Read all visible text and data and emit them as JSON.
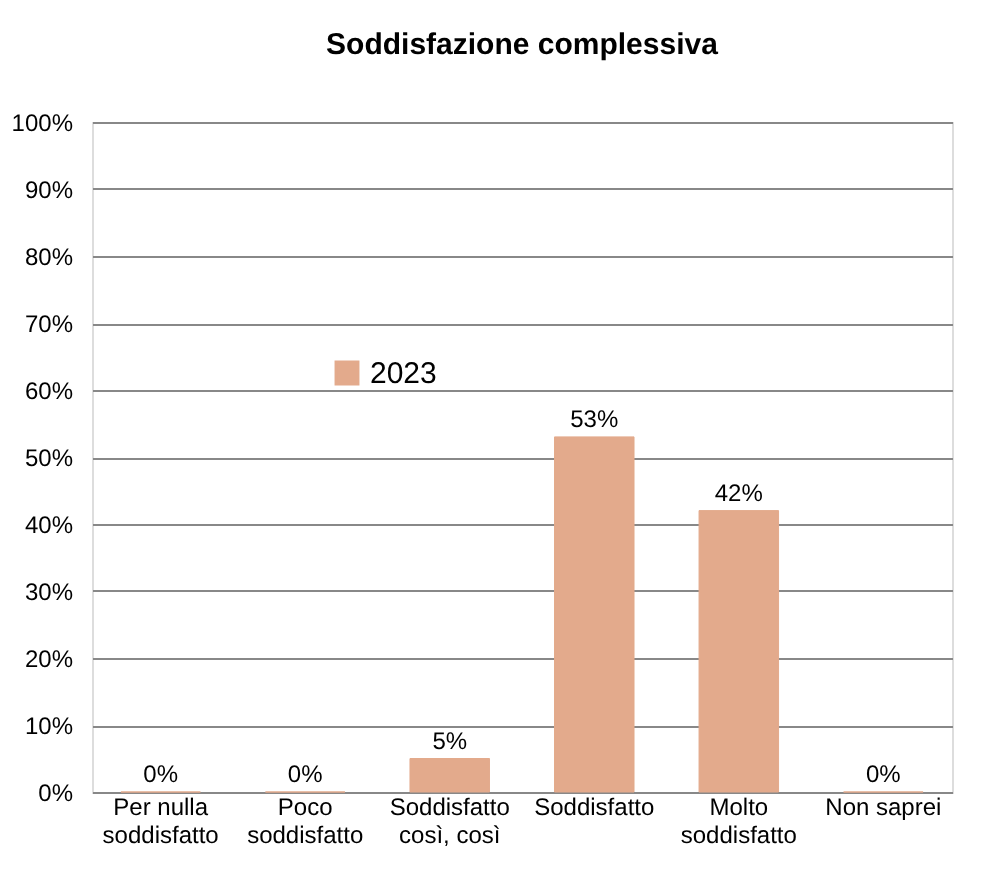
{
  "chart_data": {
    "type": "bar",
    "title": "Soddisfazione complessiva",
    "categories": [
      "Per nulla soddisfatto",
      "Poco soddisfatto",
      "Soddisfatto così, così",
      "Soddisfatto",
      "Molto soddisfatto",
      "Non saprei"
    ],
    "series": [
      {
        "name": "2023",
        "color": "#e3aa8c",
        "values": [
          0,
          0,
          5,
          53,
          42,
          0
        ]
      }
    ],
    "ylim": [
      0,
      100
    ],
    "yticks": [
      {
        "value": 0,
        "label": "0%"
      },
      {
        "value": 10,
        "label": "10%"
      },
      {
        "value": 20,
        "label": "20%"
      },
      {
        "value": 30,
        "label": "30%"
      },
      {
        "value": 40,
        "label": "40%"
      },
      {
        "value": 50,
        "label": "50%"
      },
      {
        "value": 60,
        "label": "60%"
      },
      {
        "value": 70,
        "label": "70%"
      },
      {
        "value": 80,
        "label": "80%"
      },
      {
        "value": 90,
        "label": "90%"
      },
      {
        "value": 100,
        "label": "100%"
      }
    ],
    "value_labels": [
      "0%",
      "0%",
      "5%",
      "53%",
      "42%",
      "0%"
    ],
    "grid": "y",
    "legend": "top left"
  }
}
